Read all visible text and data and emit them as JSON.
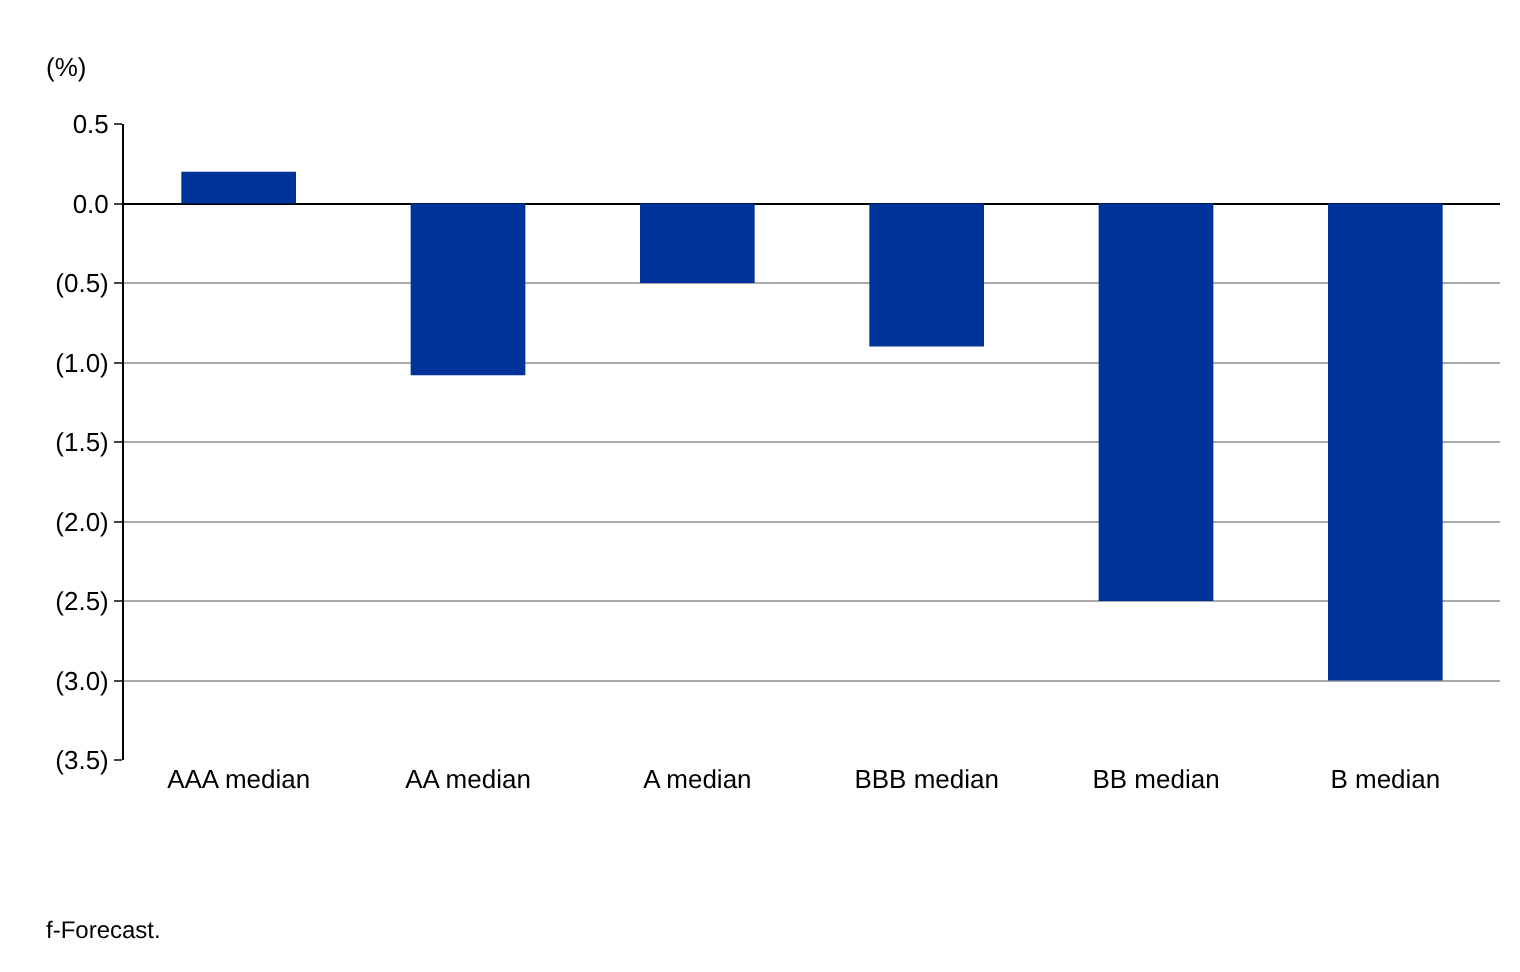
{
  "chart_data": {
    "type": "bar",
    "ylabel": "(%)",
    "categories": [
      "AAA median",
      "AA median",
      "A median",
      "BBB median",
      "BB median",
      "B median"
    ],
    "values": [
      0.2,
      -1.08,
      -0.5,
      -0.9,
      -2.5,
      -3.0
    ],
    "color": "#003399",
    "ylim": [
      -3.5,
      0.5
    ],
    "yticks": [
      {
        "value": 0.5,
        "label": "0.5"
      },
      {
        "value": 0.0,
        "label": "0.0"
      },
      {
        "value": -0.5,
        "label": "(0.5)"
      },
      {
        "value": -1.0,
        "label": "(1.0)"
      },
      {
        "value": -1.5,
        "label": "(1.5)"
      },
      {
        "value": -2.0,
        "label": "(2.0)"
      },
      {
        "value": -2.5,
        "label": "(2.5)"
      },
      {
        "value": -3.0,
        "label": "(3.0)"
      },
      {
        "value": -3.5,
        "label": "(3.5)"
      }
    ],
    "grid": "y",
    "annotations": [
      "f-Forecast."
    ]
  }
}
